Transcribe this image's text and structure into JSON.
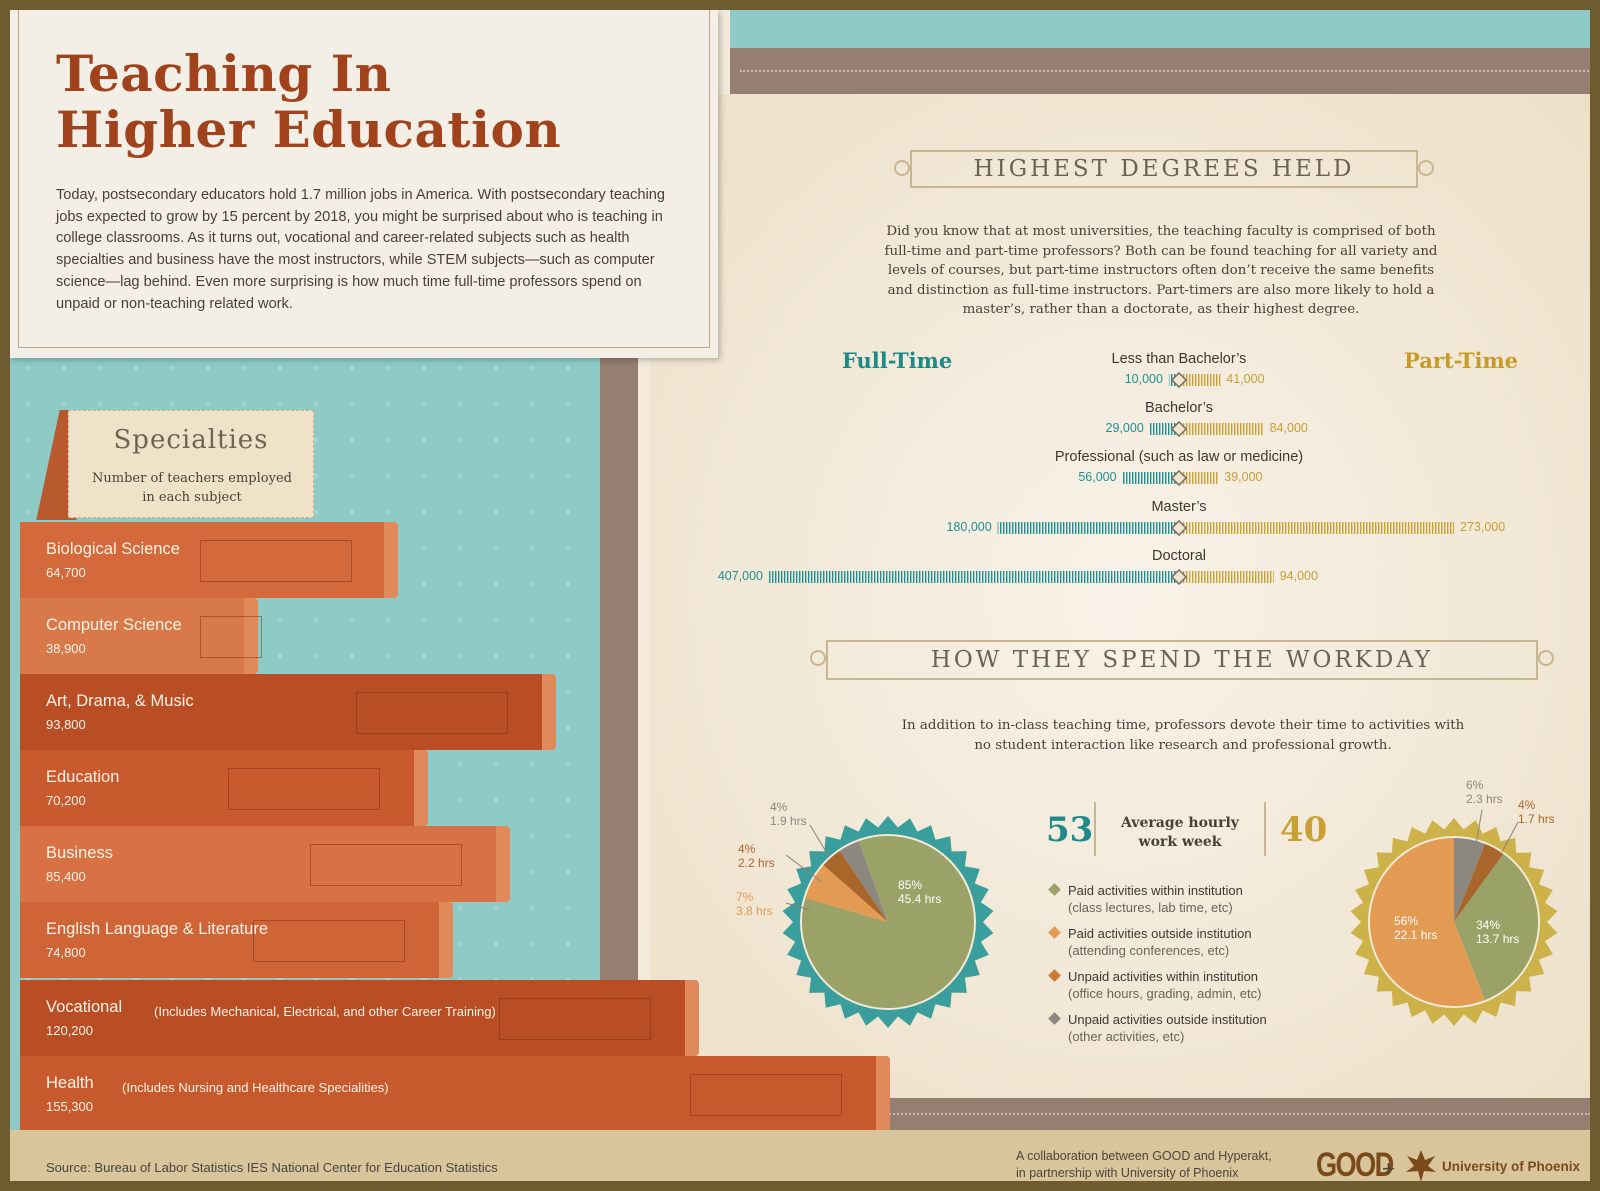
{
  "title": "Teaching In Higher Education",
  "title_line1": "Teaching In",
  "title_line2": "Higher Education",
  "intro": "Today, postsecondary educators hold 1.7 million jobs in America. With postsecondary teaching jobs expected to grow by 15 percent by 2018, you might be surprised about who is teaching in college classrooms. As it turns out, vocational and career-related subjects such as health specialties and business have the most instructors, while STEM subjects—such as computer science—lag behind. Even more surprising is how much time full-time professors spend on unpaid or non-teaching related work.",
  "specialties": {
    "title": "Specialties",
    "subtitle": "Number of teachers employed in each subject",
    "books": [
      {
        "name": "Biological Science",
        "value": "64,700",
        "note": ""
      },
      {
        "name": "Computer Science",
        "value": "38,900",
        "note": ""
      },
      {
        "name": "Art, Drama, & Music",
        "value": "93,800",
        "note": ""
      },
      {
        "name": "Education",
        "value": "70,200",
        "note": ""
      },
      {
        "name": "Business",
        "value": "85,400",
        "note": ""
      },
      {
        "name": "English Language & Literature",
        "value": "74,800",
        "note": ""
      },
      {
        "name": "Vocational",
        "value": "120,200",
        "note": "(Includes Mechanical, Electrical, and other Career Training)"
      },
      {
        "name": "Health",
        "value": "155,300",
        "note": "(Includes Nursing and Healthcare Specialities)"
      }
    ]
  },
  "degrees": {
    "heading": "HIGHEST DEGREES HELD",
    "text": "Did you know that at most universities, the teaching faculty is comprised of both full-time and part-time professors? Both can be found teaching for all variety and levels of courses, but part-time instructors often don’t receive the same benefits and distinction as full-time instructors. Part-timers are also more likely to hold a master’s, rather than a doctorate, as their highest degree.",
    "full_time_label": "Full-Time",
    "part_time_label": "Part-Time"
  },
  "workday": {
    "heading": "HOW THEY SPEND THE WORKDAY",
    "text": "In addition to in-class teaching time, professors devote their time to activities with no student interaction like research and professional growth.",
    "ft_hours": "53",
    "pt_hours": "40",
    "avg_label": "Average hourly work week",
    "legend": [
      {
        "title": "Paid activities within institution",
        "sub": "(class lectures, lab time, etc)",
        "color": "#9aa268"
      },
      {
        "title": "Paid activities outside institution",
        "sub": "(attending conferences, etc)",
        "color": "#e39a52"
      },
      {
        "title": "Unpaid activities within institution",
        "sub": "(office hours, grading, admin, etc)",
        "color": "#c97a35"
      },
      {
        "title": "Unpaid activities outside institution",
        "sub": "(other activities, etc)",
        "color": "#8c8880"
      }
    ]
  },
  "chart_data": [
    {
      "type": "bar",
      "title": "Specialties",
      "subtitle": "Number of teachers employed in each subject",
      "categories": [
        "Biological Science",
        "Computer Science",
        "Art, Drama, & Music",
        "Education",
        "Business",
        "English Language & Literature",
        "Vocational",
        "Health"
      ],
      "values": [
        64700,
        38900,
        93800,
        70200,
        85400,
        74800,
        120200,
        155300
      ]
    },
    {
      "type": "bar",
      "title": "HIGHEST DEGREES HELD",
      "categories": [
        "Less than Bachelor’s",
        "Bachelor’s",
        "Professional (such as law or medicine)",
        "Master’s",
        "Doctoral"
      ],
      "series": [
        {
          "name": "Full-Time",
          "values": [
            10000,
            29000,
            56000,
            180000,
            407000
          ],
          "labels": [
            "10,000",
            "29,000",
            "56,000",
            "180,000",
            "407,000"
          ],
          "color": "#1f9091"
        },
        {
          "name": "Part-Time",
          "values": [
            41000,
            84000,
            39000,
            273000,
            94000
          ],
          "labels": [
            "41,000",
            "84,000",
            "39,000",
            "273,000",
            "94,000"
          ],
          "color": "#c8a033"
        }
      ]
    },
    {
      "type": "pie",
      "series_name": "Full-Time",
      "slices": [
        {
          "category": "Paid activities within institution",
          "pct": 85,
          "pct_label": "85%",
          "hours": "45.4 hrs",
          "color": "#9aa268"
        },
        {
          "category": "Paid activities outside institution",
          "pct": 7,
          "pct_label": "7%",
          "hours": "3.8 hrs",
          "color": "#e39a52"
        },
        {
          "category": "Unpaid activities within institution",
          "pct": 4,
          "pct_label": "4%",
          "hours": "2.2 hrs",
          "color": "#a8662a"
        },
        {
          "category": "Unpaid activities outside institution",
          "pct": 4,
          "pct_label": "4%",
          "hours": "1.9 hrs",
          "color": "#8c8880"
        }
      ]
    },
    {
      "type": "pie",
      "series_name": "Part-Time",
      "slices": [
        {
          "category": "Paid activities within institution",
          "pct": 34,
          "pct_label": "34%",
          "hours": "13.7 hrs",
          "color": "#9aa268"
        },
        {
          "category": "Paid activities outside institution",
          "pct": 56,
          "pct_label": "56%",
          "hours": "22.1 hrs",
          "color": "#e39a52"
        },
        {
          "category": "Unpaid activities within institution",
          "pct": 4,
          "pct_label": "4%",
          "hours": "1.7 hrs",
          "color": "#a8662a"
        },
        {
          "category": "Unpaid activities outside institution",
          "pct": 6,
          "pct_label": "6%",
          "hours": "2.3 hrs",
          "color": "#8c8880"
        }
      ]
    }
  ],
  "footer": {
    "source": "Source: Bureau of Labor Statistics IES National Center for Education Statistics",
    "collab_line1": "A collaboration between GOOD and Hyperakt,",
    "collab_line2": "in partnership with University of Phoenix",
    "good_logo": "GOOD",
    "plus": "+",
    "uop_logo": "University of Phoenix",
    "uop_icon": "phoenix-icon"
  }
}
